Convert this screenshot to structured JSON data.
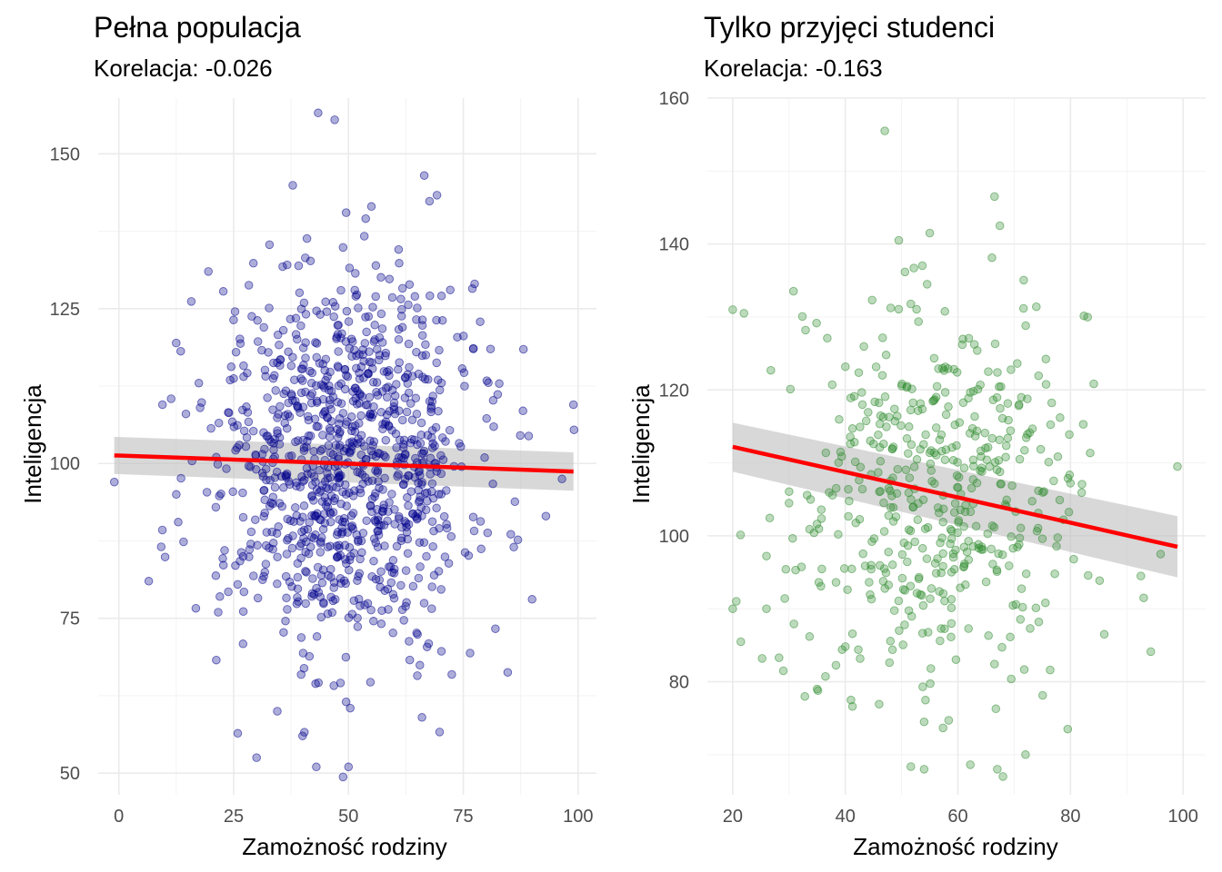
{
  "chart_data": [
    {
      "type": "scatter",
      "title": "Pełna populacja",
      "subtitle": "Korelacja: -0.026",
      "xlabel": "Zamożność rodziny",
      "ylabel": "Inteligencja",
      "xlim": [
        -4.5,
        104
      ],
      "ylim": [
        46.5,
        159
      ],
      "x_ticks": [
        0,
        25,
        50,
        75,
        100
      ],
      "y_ticks": [
        50,
        75,
        100,
        125,
        150
      ],
      "x_tick_labels": [
        "0",
        "25",
        "50",
        "75",
        "100"
      ],
      "y_tick_labels": [
        "50",
        "75",
        "100",
        "125",
        "150"
      ],
      "point_color": "#00008B",
      "point_count": 1000,
      "x_distribution": {
        "mean": 50,
        "sd": 15
      },
      "y_distribution": {
        "mean": 100,
        "sd": 15
      },
      "highlight_points": [
        {
          "x": -1,
          "y": 97
        },
        {
          "x": 6.5,
          "y": 81
        },
        {
          "x": 99,
          "y": 109.5
        },
        {
          "x": 47,
          "y": 155.5
        },
        {
          "x": 66.5,
          "y": 146.5
        },
        {
          "x": 49.5,
          "y": 140.5
        },
        {
          "x": 55,
          "y": 141.5
        },
        {
          "x": 30,
          "y": 52.5
        },
        {
          "x": 43,
          "y": 51
        },
        {
          "x": 50,
          "y": 51
        },
        {
          "x": 40,
          "y": 56
        },
        {
          "x": 34.5,
          "y": 60
        },
        {
          "x": 49.5,
          "y": 61.5
        },
        {
          "x": 66,
          "y": 59
        },
        {
          "x": 93,
          "y": 91.5
        },
        {
          "x": 96.5,
          "y": 97.5
        },
        {
          "x": 88,
          "y": 108.5
        },
        {
          "x": 86,
          "y": 86.5
        },
        {
          "x": 19.5,
          "y": 131
        },
        {
          "x": 22,
          "y": 78.5
        },
        {
          "x": 12.5,
          "y": 95
        },
        {
          "x": 9.5,
          "y": 109.5
        }
      ],
      "trend": {
        "x": [
          -1,
          99
        ],
        "y": [
          101.3,
          98.7
        ],
        "color": "#FF0000"
      },
      "ci_band": {
        "x": [
          -1,
          99
        ],
        "lower": [
          98.3,
          95.6
        ],
        "upper": [
          104.3,
          101.8
        ],
        "color": "#BEBEBE"
      }
    },
    {
      "type": "scatter",
      "title": "Tylko przyjęci studenci",
      "subtitle": "Korelacja: -0.163",
      "xlabel": "Zamożność rodziny",
      "ylabel": "Inteligencja",
      "xlim": [
        15.5,
        104
      ],
      "ylim": [
        64.5,
        160
      ],
      "x_ticks": [
        20,
        40,
        60,
        80,
        100
      ],
      "y_ticks": [
        80,
        100,
        120,
        140,
        160
      ],
      "x_tick_labels": [
        "20",
        "40",
        "60",
        "80",
        "100"
      ],
      "y_tick_labels": [
        "80",
        "100",
        "120",
        "140",
        "160"
      ],
      "point_color": "#2E8B2E",
      "point_count": 480,
      "x_distribution": {
        "mean": 56,
        "sd": 13
      },
      "y_distribution": {
        "mean": 105.5,
        "sd": 13
      },
      "highlight_points": [
        {
          "x": 47,
          "y": 155.5
        },
        {
          "x": 66.5,
          "y": 146.5
        },
        {
          "x": 49.5,
          "y": 140.5
        },
        {
          "x": 55,
          "y": 141.5
        },
        {
          "x": 20,
          "y": 131
        },
        {
          "x": 22,
          "y": 130.5
        },
        {
          "x": 20,
          "y": 90
        },
        {
          "x": 26,
          "y": 90
        },
        {
          "x": 29,
          "y": 81.5
        },
        {
          "x": 99,
          "y": 109.5
        },
        {
          "x": 96,
          "y": 97.5
        },
        {
          "x": 93,
          "y": 91.5
        },
        {
          "x": 92.5,
          "y": 94.5
        },
        {
          "x": 86,
          "y": 86.5
        },
        {
          "x": 54,
          "y": 68
        },
        {
          "x": 67,
          "y": 68
        },
        {
          "x": 68,
          "y": 67
        },
        {
          "x": 72,
          "y": 70
        },
        {
          "x": 79.5,
          "y": 73.5
        },
        {
          "x": 54,
          "y": 74.5
        },
        {
          "x": 35,
          "y": 79
        },
        {
          "x": 41,
          "y": 77.5
        }
      ],
      "trend": {
        "x": [
          20,
          99
        ],
        "y": [
          112.2,
          98.5
        ],
        "color": "#FF0000"
      },
      "ci_band": {
        "x": [
          20,
          99
        ],
        "lower": [
          108.8,
          94.3
        ],
        "upper": [
          115.5,
          102.7
        ],
        "color": "#BEBEBE"
      }
    }
  ]
}
